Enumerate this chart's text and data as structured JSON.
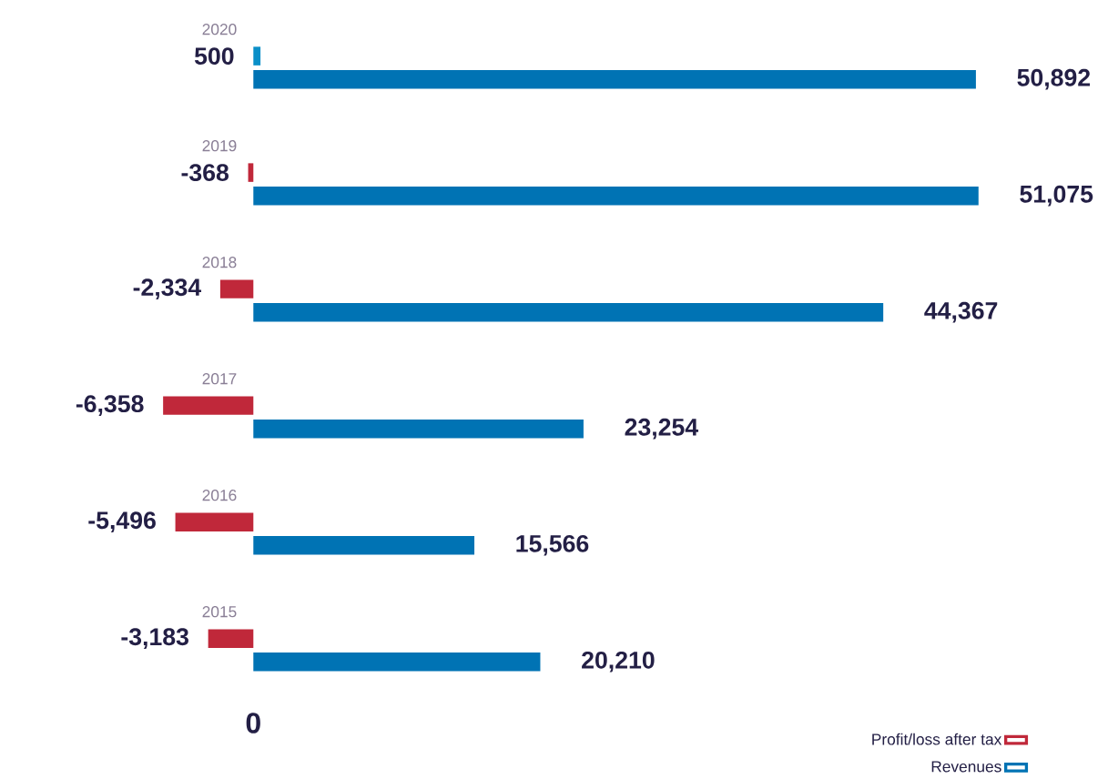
{
  "chart_data": {
    "type": "bar",
    "orientation": "horizontal",
    "categories": [
      "2020",
      "2019",
      "2018",
      "2017",
      "2016",
      "2015"
    ],
    "series": [
      {
        "name": "Profit/loss after tax",
        "color": "#c0283a",
        "colors": [
          "#0a8fc8",
          "#c0283a",
          "#c0283a",
          "#c0283a",
          "#c0283a",
          "#c0283a"
        ],
        "values": [
          500,
          -368,
          -2334,
          -6358,
          -5496,
          -3183
        ],
        "value_labels": [
          "500",
          "-368",
          "-2,334",
          "-6,358",
          "-5,496",
          "-3,183"
        ]
      },
      {
        "name": "Revenues",
        "color": "#0073b4",
        "values": [
          50892,
          51075,
          44367,
          23254,
          15566,
          20210
        ],
        "value_labels": [
          "50,892",
          "51,075",
          "44,367",
          "23,254",
          "15,566",
          "20,210"
        ]
      }
    ],
    "annotations": [
      "0"
    ],
    "legend": "bottom right"
  }
}
